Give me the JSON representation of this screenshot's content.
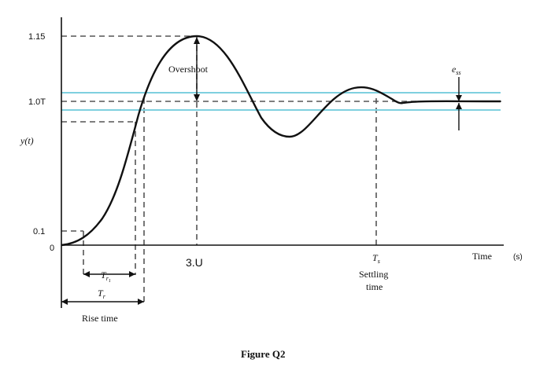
{
  "chart_data": {
    "type": "line",
    "title": "",
    "xlabel": "Time",
    "x_unit": "(s)",
    "ylabel": "y(t)",
    "y_ticks": [
      "1.15",
      "1.0T",
      "0.1",
      "0"
    ],
    "series": [
      {
        "points": [
          [
            0.0,
            0.0
          ],
          [
            0.15,
            0.02
          ],
          [
            0.3,
            0.1
          ],
          [
            0.55,
            0.3
          ],
          [
            0.75,
            0.55
          ],
          [
            0.92,
            0.85
          ],
          [
            1.0,
            1.0
          ],
          [
            1.15,
            1.12
          ],
          [
            1.33,
            1.15
          ],
          [
            1.5,
            1.12
          ],
          [
            1.75,
            0.95
          ],
          [
            2.0,
            0.87
          ],
          [
            2.2,
            0.91
          ],
          [
            2.45,
            1.01
          ],
          [
            2.6,
            1.04
          ],
          [
            2.75,
            1.01
          ],
          [
            2.9,
            0.99
          ],
          [
            3.0,
            1.0
          ]
        ]
      }
    ],
    "annotations": {
      "overshoot": "Overshoot",
      "ess_main": "e",
      "ess_sub": "ss",
      "tr1_main": "T",
      "tr1_sub": "r",
      "tr1_subsub": "1",
      "tr_main": "T",
      "tr_sub": "r",
      "rise_time": "Rise time",
      "ts_main": "T",
      "ts_sub": "s",
      "settling_line1": "Settling",
      "settling_line2": "time",
      "peak_label": "3.U"
    }
  },
  "figure_caption": "Figure Q2",
  "colors": {
    "curve": "#111111",
    "tolerance_band": "#7fd0df",
    "guides": "#555555"
  }
}
